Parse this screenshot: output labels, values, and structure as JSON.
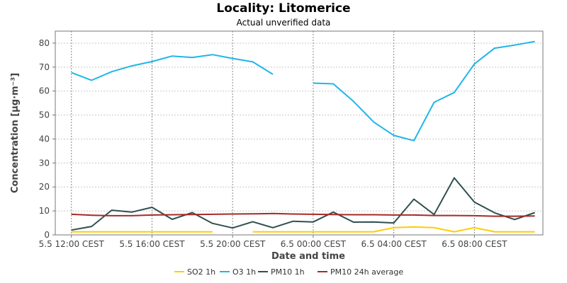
{
  "chart_data": {
    "type": "line",
    "title": "Locality: Litomerice",
    "subtitle": "Actual unverified data",
    "xlabel": "Date and time",
    "ylabel": "Concentration [µg·m⁻³]",
    "ylim": [
      0,
      85
    ],
    "y_ticks": [
      0,
      10,
      20,
      30,
      40,
      50,
      60,
      70,
      80
    ],
    "x_labels": [
      "5.5 12:00 CEST",
      "5.5 16:00 CEST",
      "5.5 20:00 CEST",
      "6.5 00:00 CEST",
      "6.5 04:00 CEST",
      "6.5 08:00 CEST"
    ],
    "x_hours": [
      12,
      13,
      14,
      15,
      16,
      17,
      18,
      19,
      20,
      21,
      22,
      23,
      24,
      25,
      26,
      27,
      28,
      29,
      30,
      31,
      32,
      33,
      34,
      35
    ],
    "grid": true,
    "legend_position": "bottom",
    "series": [
      {
        "name": "SO2 1h",
        "color": "#FFCC00",
        "values": [
          1.3,
          1.3,
          1.3,
          1.3,
          1.3,
          1.3,
          1.3,
          1.3,
          null,
          1.3,
          1.3,
          1.3,
          1.3,
          1.3,
          1.3,
          1.3,
          3.0,
          3.3,
          3.0,
          1.3,
          3.0,
          1.3,
          1.3,
          1.3
        ]
      },
      {
        "name": "O3 1h",
        "color": "#1FB6E8",
        "values": [
          67.7,
          64.5,
          68.1,
          70.5,
          72.3,
          74.6,
          74.0,
          75.2,
          73.6,
          72.2,
          67.0,
          null,
          63.3,
          63.0,
          55.7,
          47.1,
          41.5,
          39.3,
          55.3,
          59.4,
          71.3,
          77.9,
          79.2,
          80.7
        ]
      },
      {
        "name": "PM10 1h",
        "color": "#2F4F4F",
        "values": [
          2.0,
          3.5,
          10.3,
          9.5,
          11.5,
          6.5,
          9.3,
          4.8,
          2.9,
          5.5,
          3.0,
          5.7,
          5.4,
          9.5,
          5.3,
          5.4,
          5.0,
          14.9,
          8.5,
          23.8,
          13.7,
          9.2,
          6.4,
          9.3
        ]
      },
      {
        "name": "PM10 24h average",
        "color": "#A52A2A",
        "values": [
          8.6,
          8.2,
          8.0,
          8.0,
          8.3,
          8.4,
          8.5,
          8.6,
          8.7,
          8.8,
          8.9,
          8.7,
          8.6,
          8.5,
          8.4,
          8.4,
          8.3,
          8.3,
          8.1,
          8.1,
          8.0,
          7.8,
          7.8,
          7.9
        ]
      }
    ]
  }
}
